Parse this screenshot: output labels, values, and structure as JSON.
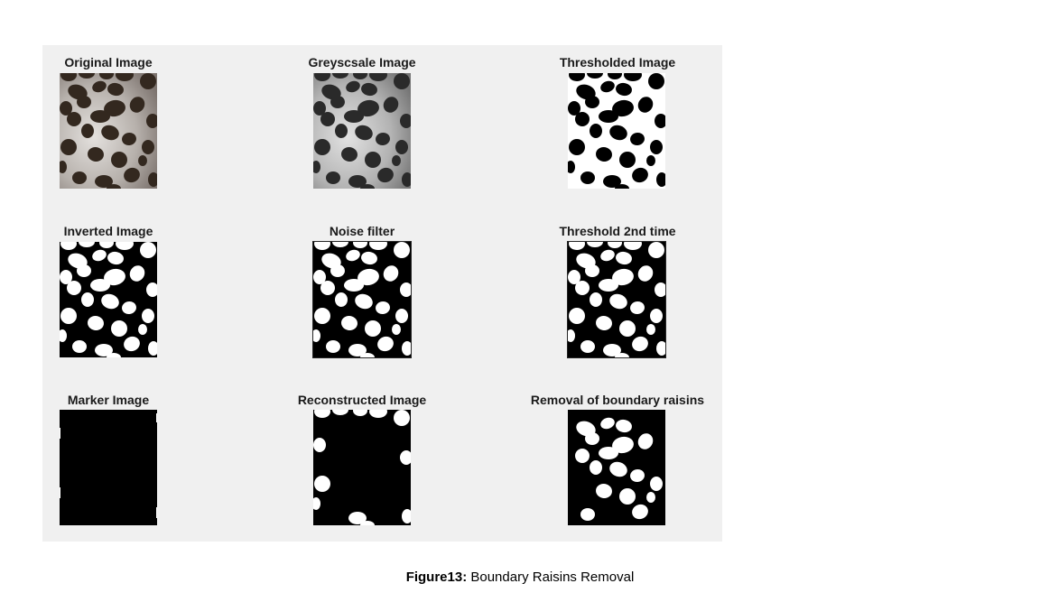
{
  "figure": {
    "panels": [
      {
        "title": "Original Image",
        "mode": "original"
      },
      {
        "title": "Greyscsale Image",
        "mode": "grey"
      },
      {
        "title": "Thresholded Image",
        "mode": "threshold"
      },
      {
        "title": "Inverted Image",
        "mode": "inverted"
      },
      {
        "title": "Noise filter",
        "mode": "inverted"
      },
      {
        "title": "Threshold 2nd time",
        "mode": "inverted"
      },
      {
        "title": "Marker Image",
        "mode": "marker"
      },
      {
        "title": "Reconstructed Image",
        "mode": "reconstructed"
      },
      {
        "title": "Removal of boundary raisins",
        "mode": "removed"
      }
    ]
  },
  "caption": {
    "label": "Figure13:",
    "text": " Boundary Raisins Removal"
  }
}
